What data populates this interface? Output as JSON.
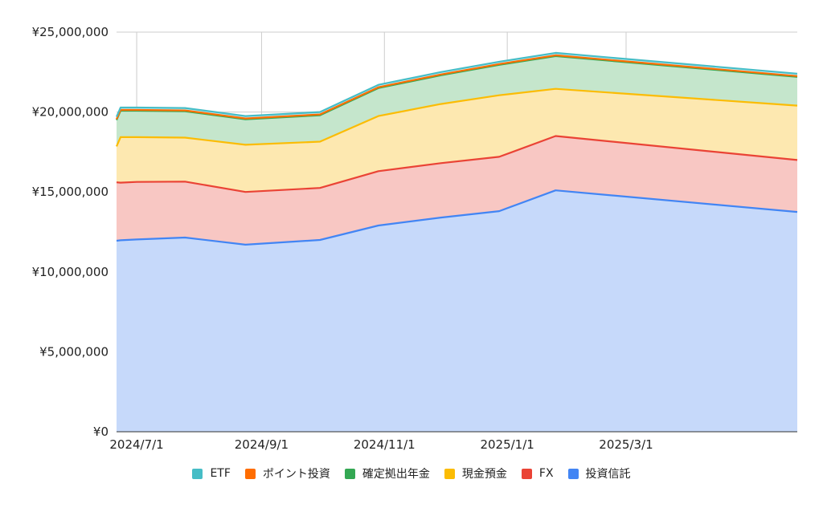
{
  "chart_data": {
    "type": "area",
    "stacked": true,
    "title": "",
    "xlabel": "",
    "ylabel": "",
    "ylim": [
      0,
      25000000
    ],
    "yticks": [
      "¥0",
      "¥5,000,000",
      "¥10,000,000",
      "¥15,000,000",
      "¥20,000,000",
      "¥25,000,000"
    ],
    "y_tick_values": [
      0,
      5000000,
      10000000,
      15000000,
      20000000,
      25000000
    ],
    "x_range": [
      "2024-06-21",
      "2025-05-25"
    ],
    "xticks": [
      "2024/7/1",
      "2024/9/1",
      "2024/11/1",
      "2025/1/1",
      "2025/3/1"
    ],
    "x_tick_dates": [
      "2024-07-01",
      "2024-09-01",
      "2024-11-01",
      "2025-01-01",
      "2025-03-01"
    ],
    "grid": true,
    "legend_position": "bottom",
    "x": [
      "2024-06-21",
      "2024-06-23",
      "2024-07-01",
      "2024-07-25",
      "2024-08-24",
      "2024-09-30",
      "2024-10-29",
      "2024-11-29",
      "2024-12-28",
      "2025-01-25",
      "2025-05-25"
    ],
    "series": [
      {
        "name": "投資信託",
        "color": "#4285F4",
        "fill": "#c6d9fa",
        "values": [
          11950000,
          11980000,
          12030000,
          12150000,
          11700000,
          12000000,
          12900000,
          13400000,
          13800000,
          15100000,
          13750000
        ]
      },
      {
        "name": "FX",
        "color": "#EA4335",
        "fill": "#f8c7c3",
        "values": [
          3650000,
          3600000,
          3600000,
          3500000,
          3300000,
          3250000,
          3400000,
          3400000,
          3400000,
          3400000,
          3250000
        ]
      },
      {
        "name": "現金預金",
        "color": "#FBBC04",
        "fill": "#fde8b0",
        "values": [
          2250000,
          2850000,
          2800000,
          2750000,
          2950000,
          2900000,
          3450000,
          3700000,
          3850000,
          2950000,
          3400000
        ]
      },
      {
        "name": "確定拠出年金",
        "color": "#34A853",
        "fill": "#c5e6cc",
        "values": [
          1650000,
          1650000,
          1650000,
          1650000,
          1600000,
          1650000,
          1750000,
          1800000,
          1900000,
          2050000,
          1800000
        ]
      },
      {
        "name": "ポイント投資",
        "color": "#FF6D01",
        "fill": "#ffd2b3",
        "values": [
          50000,
          50000,
          50000,
          50000,
          50000,
          50000,
          50000,
          50000,
          50000,
          50000,
          50000
        ]
      },
      {
        "name": "ETF",
        "color": "#46BDC6",
        "fill": "#c7ebee",
        "values": [
          150000,
          150000,
          150000,
          150000,
          150000,
          150000,
          150000,
          150000,
          150000,
          150000,
          150000
        ]
      }
    ],
    "legend_order": [
      "ETF",
      "ポイント投資",
      "確定拠出年金",
      "現金預金",
      "FX",
      "投資信託"
    ]
  }
}
